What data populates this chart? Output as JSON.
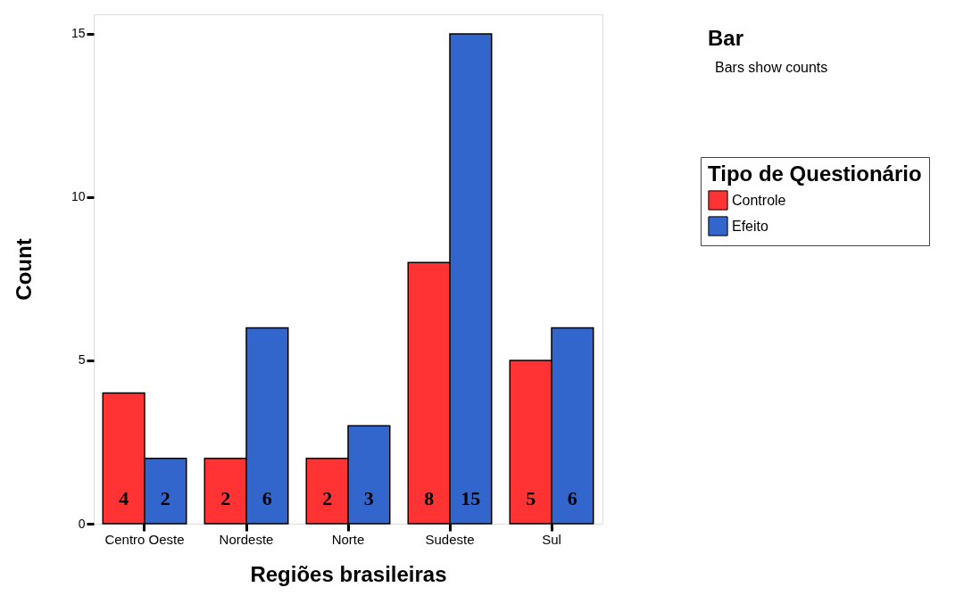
{
  "chart_data": {
    "type": "bar",
    "title": "Bar",
    "subtitle": "Bars show counts",
    "xlabel": "Regiões brasileiras",
    "ylabel": "Count",
    "legend_title": "Tipo de Questionário",
    "categories": [
      "Centro Oeste",
      "Nordeste",
      "Norte",
      "Sudeste",
      "Sul"
    ],
    "series": [
      {
        "name": "Controle",
        "color": "#ff3333",
        "values": [
          4,
          2,
          2,
          8,
          5
        ]
      },
      {
        "name": "Efeito",
        "color": "#3366cc",
        "values": [
          2,
          6,
          3,
          15,
          6
        ]
      }
    ],
    "ylim": [
      0,
      15.6
    ],
    "yticks": [
      0,
      5,
      10,
      15
    ],
    "grid": false,
    "legend": "right",
    "data_labels": true
  }
}
